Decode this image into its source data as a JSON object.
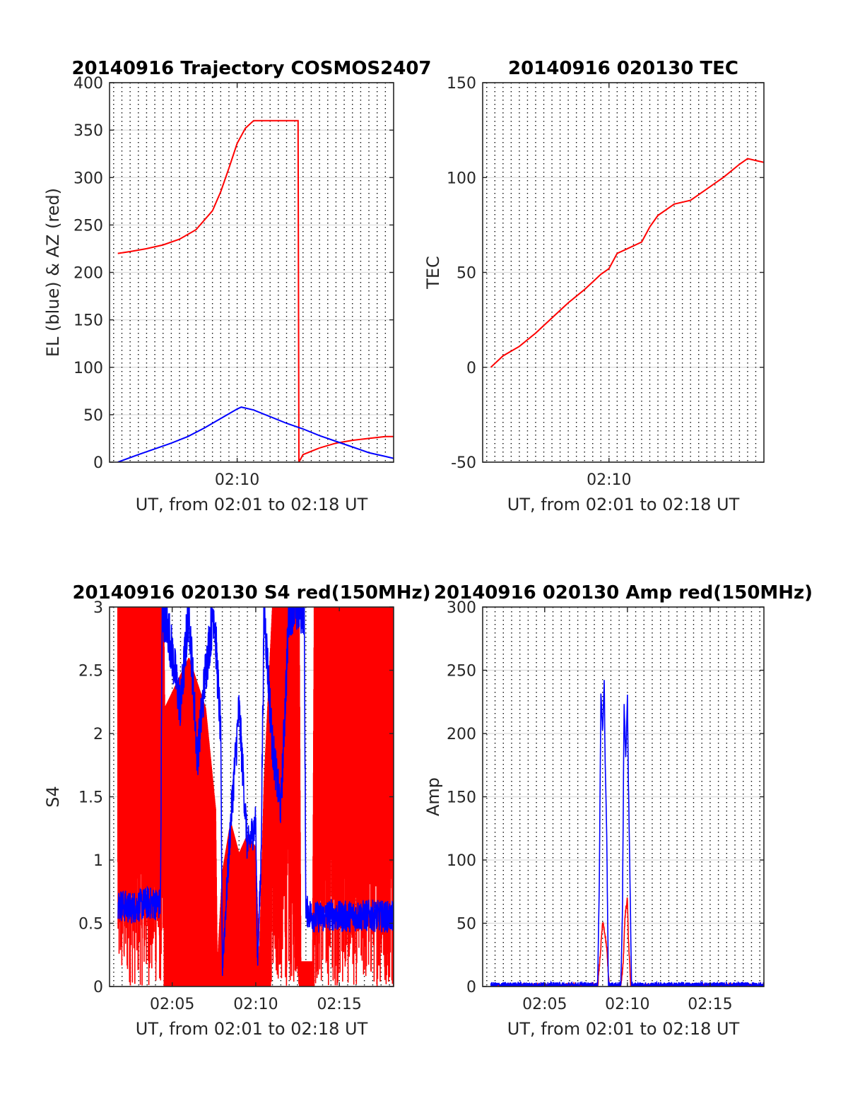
{
  "colors": {
    "red": "#ff0000",
    "blue": "#0000ff",
    "axis": "#262626",
    "grid_h": "#dcdcdc",
    "grid_v": "#000000"
  },
  "chart_data": [
    {
      "id": "traj",
      "type": "line",
      "title": "20140916 Trajectory COSMOS2407",
      "xlabel": "UT, from 02:01 to 02:18 UT",
      "ylabel": "EL (blue) & AZ (red)",
      "xlim": [
        2.25,
        19.5
      ],
      "ylim": [
        0,
        400
      ],
      "yticks": [
        0,
        50,
        100,
        150,
        200,
        250,
        300,
        350,
        400
      ],
      "ytick_labels": [
        "0",
        "50",
        "100",
        "150",
        "200",
        "250",
        "300",
        "350",
        "400"
      ],
      "xticks": [
        10
      ],
      "xtick_labels": [
        "02:10"
      ],
      "grid_v_step": 0.5,
      "series": [
        {
          "color": "red",
          "x": [
            2.75,
            3.5,
            4.5,
            5.5,
            6.5,
            7.5,
            8.5,
            9,
            9.5,
            10,
            10.5,
            11,
            11.5,
            12,
            12.5,
            13,
            13.5,
            13.7,
            13.75,
            14,
            15,
            16,
            17,
            18,
            19,
            19.5
          ],
          "y": [
            220,
            222,
            225,
            229,
            235,
            245,
            265,
            285,
            310,
            336,
            352,
            360,
            360,
            360,
            360,
            360,
            360,
            360,
            0,
            8,
            15,
            20,
            23,
            25,
            27,
            27
          ]
        },
        {
          "color": "blue",
          "x": [
            2.75,
            4,
            5,
            6,
            7,
            8,
            9,
            10,
            10.25,
            11,
            12,
            13,
            14,
            15,
            16,
            17,
            18,
            19,
            19.5
          ],
          "y": [
            0,
            8,
            14,
            20,
            27,
            36,
            46,
            56,
            58,
            55,
            48,
            41,
            35,
            28,
            22,
            16,
            10,
            6,
            4
          ]
        }
      ]
    },
    {
      "id": "tec",
      "type": "line",
      "title": "20140916 020130 TEC",
      "xlabel": "UT, from 02:01 to 02:18 UT",
      "ylabel": "TEC",
      "xlim": [
        2.25,
        19.5
      ],
      "ylim": [
        -50,
        150
      ],
      "yticks": [
        -50,
        0,
        50,
        100,
        150
      ],
      "ytick_labels": [
        "-50",
        "0",
        "50",
        "100",
        "150"
      ],
      "xticks": [
        10
      ],
      "xtick_labels": [
        "02:10"
      ],
      "grid_v_step": 0.5,
      "series": [
        {
          "color": "red",
          "x": [
            2.75,
            3.5,
            4.5,
            5.5,
            6.5,
            7.5,
            8.5,
            9.5,
            10,
            10.5,
            11,
            12,
            12.5,
            13,
            14,
            15,
            15.5,
            16,
            17,
            18,
            18.5,
            19,
            19.5
          ],
          "y": [
            0,
            6,
            11,
            18,
            26,
            34,
            41,
            49,
            52,
            60,
            62,
            66,
            74,
            80,
            86,
            88,
            91,
            94,
            100,
            107,
            110,
            109,
            108
          ]
        }
      ]
    },
    {
      "id": "s4",
      "type": "line",
      "title": "20140916 020130 S4 red(150MHz)",
      "xlabel": "UT, from 02:01 to 02:18 UT",
      "ylabel": "S4",
      "xlim": [
        1.25,
        18.25
      ],
      "ylim": [
        0,
        3
      ],
      "yticks": [
        0,
        0.5,
        1,
        1.5,
        2,
        2.5,
        3
      ],
      "ytick_labels": [
        "0",
        "0.5",
        "1",
        "1.5",
        "2",
        "2.5",
        "3"
      ],
      "xticks": [
        5,
        10,
        15
      ],
      "xtick_labels": [
        "02:05",
        "02:10",
        "02:15"
      ],
      "grid_v_step": 0.5,
      "series": [
        {
          "color": "red",
          "render": "noisy_band",
          "x": [
            1.75,
            4.5,
            4.55,
            6,
            7,
            7.6,
            7.7,
            8,
            8.5,
            9,
            9.5,
            10,
            10.2,
            10.5,
            11,
            12.6,
            12.7,
            13.4,
            13.5,
            18.25
          ],
          "y": [
            3,
            3,
            2.2,
            2.6,
            2.2,
            1.4,
            0.15,
            0.9,
            1.3,
            1.05,
            1.2,
            1.1,
            0.15,
            1.6,
            3,
            3,
            0.2,
            0.2,
            3,
            3
          ]
        },
        {
          "color": "blue",
          "render": "noisy_line",
          "x": [
            1.75,
            2.5,
            3.5,
            4.3,
            4.4,
            4.8,
            5.5,
            6,
            6.5,
            7,
            7.5,
            7.9,
            8,
            8.5,
            9,
            9.5,
            10,
            10.1,
            10.3,
            10.5,
            11,
            11.5,
            12,
            12.5,
            12.9,
            13,
            13.5,
            14,
            14.5,
            15,
            16,
            17,
            18.25
          ],
          "y": [
            0.65,
            0.62,
            0.66,
            0.65,
            3,
            2.8,
            2.2,
            3,
            1.8,
            2.5,
            3,
            2,
            0.15,
            1.3,
            2.2,
            1.1,
            1.3,
            0.2,
            0.9,
            3,
            1.9,
            1.4,
            3,
            3,
            3,
            0.6,
            0.55,
            0.55,
            0.57,
            0.55,
            0.56,
            0.56,
            0.55
          ]
        }
      ]
    },
    {
      "id": "amp",
      "type": "line",
      "title": "20140916 020130 Amp red(150MHz)",
      "xlabel": "UT, from 02:01 to 02:18 UT",
      "ylabel": "Amp",
      "xlim": [
        1.25,
        18.25
      ],
      "ylim": [
        0,
        300
      ],
      "yticks": [
        0,
        50,
        100,
        150,
        200,
        250,
        300
      ],
      "ytick_labels": [
        "0",
        "50",
        "100",
        "150",
        "200",
        "250",
        "300"
      ],
      "xticks": [
        5,
        10,
        15
      ],
      "xtick_labels": [
        "02:05",
        "02:10",
        "02:15"
      ],
      "grid_v_step": 0.5,
      "series": [
        {
          "color": "red",
          "render": "noisy_line",
          "x": [
            1.75,
            8.2,
            8.3,
            8.5,
            8.6,
            8.75,
            8.9,
            9.6,
            9.75,
            9.85,
            10,
            10.05,
            10.2,
            18.25
          ],
          "y": [
            0,
            0,
            15,
            50,
            45,
            30,
            0,
            0,
            20,
            55,
            70,
            40,
            0,
            0
          ]
        },
        {
          "color": "blue",
          "render": "noisy_line",
          "x": [
            1.75,
            8.2,
            8.3,
            8.4,
            8.5,
            8.6,
            8.65,
            8.75,
            8.85,
            9.6,
            9.7,
            9.8,
            9.9,
            10,
            10.05,
            10.15,
            10.25,
            18.25
          ],
          "y": [
            1,
            1,
            80,
            235,
            200,
            243,
            180,
            120,
            1,
            1,
            60,
            225,
            180,
            230,
            170,
            90,
            1,
            1
          ]
        }
      ]
    }
  ]
}
